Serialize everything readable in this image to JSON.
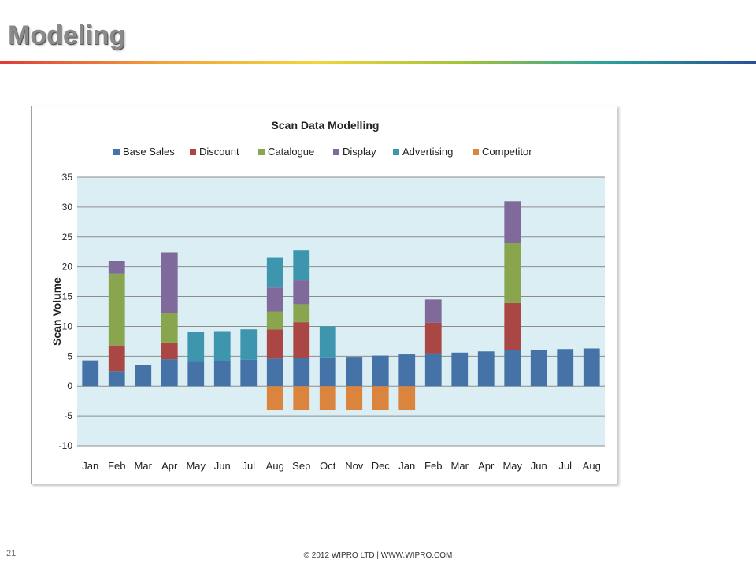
{
  "slide": {
    "title": "Modeling",
    "page_number": "21",
    "footer": "© 2012 WIPRO LTD | WWW.WIPRO.COM"
  },
  "chart_data": {
    "type": "bar",
    "stacked": true,
    "title": "Scan Data Modelling",
    "xlabel": "",
    "ylabel": "Scan Volume",
    "ylim": [
      -10,
      35
    ],
    "yticks": [
      -10,
      -5,
      0,
      5,
      10,
      15,
      20,
      25,
      30,
      35
    ],
    "grid": true,
    "legend_position": "top",
    "plot_background": "#dbeef4",
    "categories": [
      "Jan",
      "Feb",
      "Mar",
      "Apr",
      "May",
      "Jun",
      "Jul",
      "Aug",
      "Sep",
      "Oct",
      "Nov",
      "Dec",
      "Jan",
      "Feb",
      "Mar",
      "Apr",
      "May",
      "Jun",
      "Jul",
      "Aug"
    ],
    "series": [
      {
        "name": "Base Sales",
        "color": "#4572a7",
        "values": [
          4.3,
          2.5,
          3.5,
          4.5,
          4.1,
          4.2,
          4.4,
          4.6,
          4.7,
          4.8,
          4.9,
          5.1,
          5.3,
          5.5,
          5.6,
          5.8,
          6.0,
          6.1,
          6.2,
          6.3
        ]
      },
      {
        "name": "Discount",
        "color": "#aa4643",
        "values": [
          0,
          4.3,
          0,
          2.8,
          0,
          0,
          0,
          4.9,
          6.0,
          0,
          0,
          0,
          0,
          5.1,
          0,
          0,
          7.9,
          0,
          0,
          0
        ]
      },
      {
        "name": "Catalogue",
        "color": "#89a54e",
        "values": [
          0,
          12.0,
          0,
          5.0,
          0,
          0,
          0,
          3.0,
          3.0,
          0,
          0,
          0,
          0,
          0,
          0,
          0,
          10.1,
          0,
          0,
          0
        ]
      },
      {
        "name": "Display",
        "color": "#80699b",
        "values": [
          0,
          2.1,
          0,
          10.1,
          0,
          0,
          0,
          4.0,
          4.0,
          0,
          0,
          0,
          0,
          3.9,
          0,
          0,
          7.0,
          0,
          0,
          0
        ]
      },
      {
        "name": "Advertising",
        "color": "#3d96ae",
        "values": [
          0,
          0,
          0,
          0,
          5.0,
          5.0,
          5.1,
          5.1,
          5.0,
          5.2,
          0,
          0,
          0,
          0,
          0,
          0,
          0,
          0,
          0,
          0
        ]
      },
      {
        "name": "Competitor",
        "color": "#db843d",
        "values": [
          0,
          0,
          0,
          0,
          0,
          0,
          0,
          -4,
          -4,
          -4,
          -4,
          -4,
          -4,
          0,
          0,
          0,
          0,
          0,
          0,
          0
        ]
      }
    ]
  }
}
